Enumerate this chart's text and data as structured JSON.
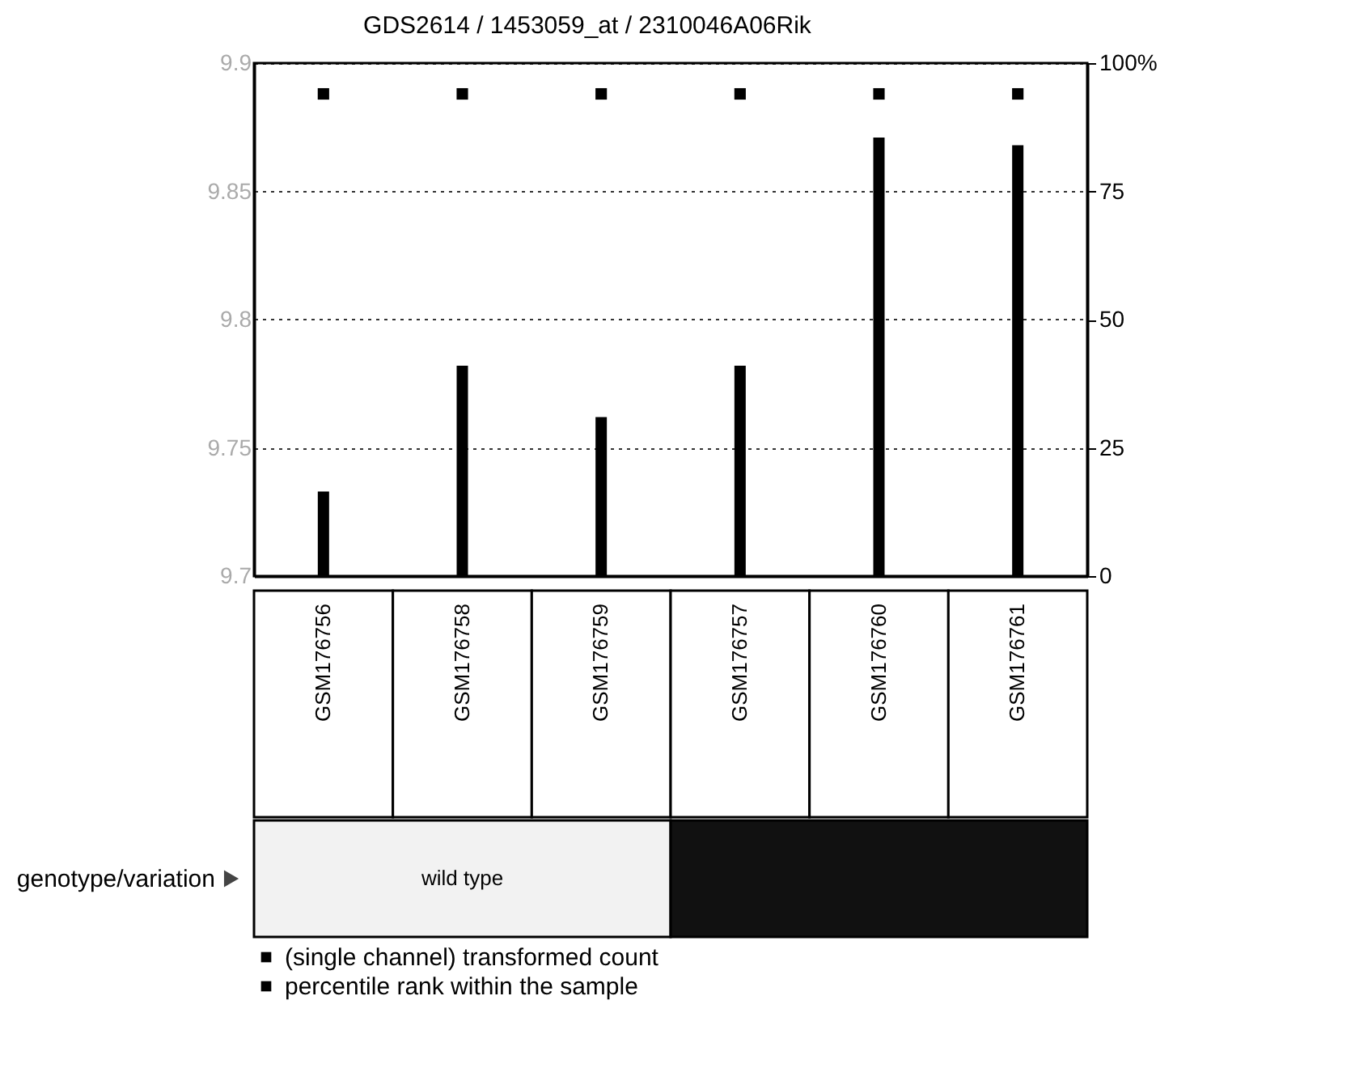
{
  "chart_data": {
    "type": "bar",
    "title": "GDS2614 / 1453059_at / 2310046A06Rik",
    "categories": [
      "GSM176756",
      "GSM176758",
      "GSM176759",
      "GSM176757",
      "GSM176760",
      "GSM176761"
    ],
    "series": [
      {
        "name": "(single channel) transformed count",
        "color": "#000000",
        "values": [
          9.733,
          9.782,
          9.762,
          9.782,
          9.871,
          9.868
        ]
      },
      {
        "name": "percentile rank within the sample",
        "color": "#000000",
        "type": "scatter",
        "axis": "y2",
        "values": [
          94,
          94,
          94,
          94,
          94,
          94
        ]
      }
    ],
    "ylim": [
      9.7,
      9.9
    ],
    "yticks": [
      9.7,
      9.75,
      9.8,
      9.85,
      9.9
    ],
    "y2lim": [
      0,
      100
    ],
    "y2ticks": [
      0,
      25,
      50,
      75,
      {
        "value": 100,
        "label": "100%"
      }
    ],
    "grid": "y",
    "marker": "square",
    "legend": "bottom",
    "annotations": [
      "genotype/variation",
      "wild type"
    ]
  }
}
